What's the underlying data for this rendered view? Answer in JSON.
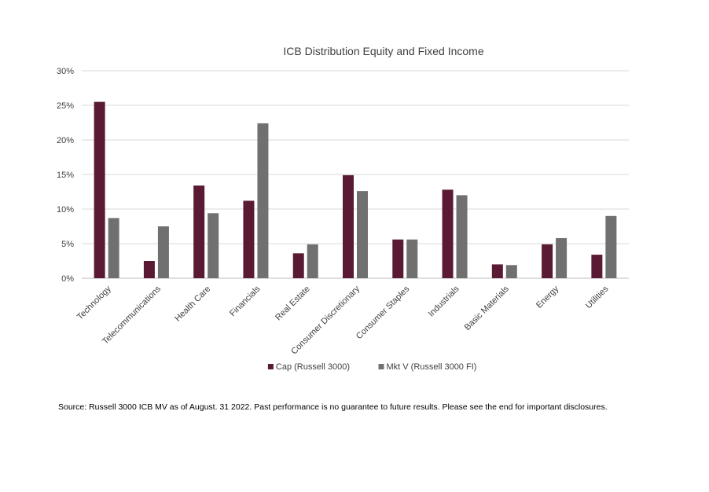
{
  "chart_data": {
    "type": "bar",
    "title": "ICB Distribution Equity and Fixed Income",
    "categories": [
      "Technology",
      "Telecommunications",
      "Health Care",
      "Financials",
      "Real Estate",
      "Consumer Discretionary",
      "Consumer Staples",
      "Industrials",
      "Basic Materials",
      "Energy",
      "Utilities"
    ],
    "series": [
      {
        "name": "Cap (Russell 3000)",
        "color": "#5a1a33",
        "values": [
          25.5,
          2.5,
          13.4,
          11.2,
          3.6,
          14.9,
          5.6,
          12.8,
          2.0,
          4.9,
          3.4
        ]
      },
      {
        "name": "Mkt V (Russell 3000 FI)",
        "color": "#707070",
        "values": [
          8.7,
          7.5,
          9.4,
          22.4,
          4.9,
          12.6,
          5.6,
          12.0,
          1.9,
          5.8,
          9.0
        ]
      }
    ],
    "y_ticks": [
      "0%",
      "5%",
      "10%",
      "15%",
      "20%",
      "25%",
      "30%"
    ],
    "ylim": [
      0,
      30
    ],
    "grid": true,
    "legend_position": "bottom-center"
  },
  "footnote": "Source: Russell 3000 ICB MV as of August. 31 2022. Past performance is no guarantee to future results. Please see the end for important disclosures."
}
